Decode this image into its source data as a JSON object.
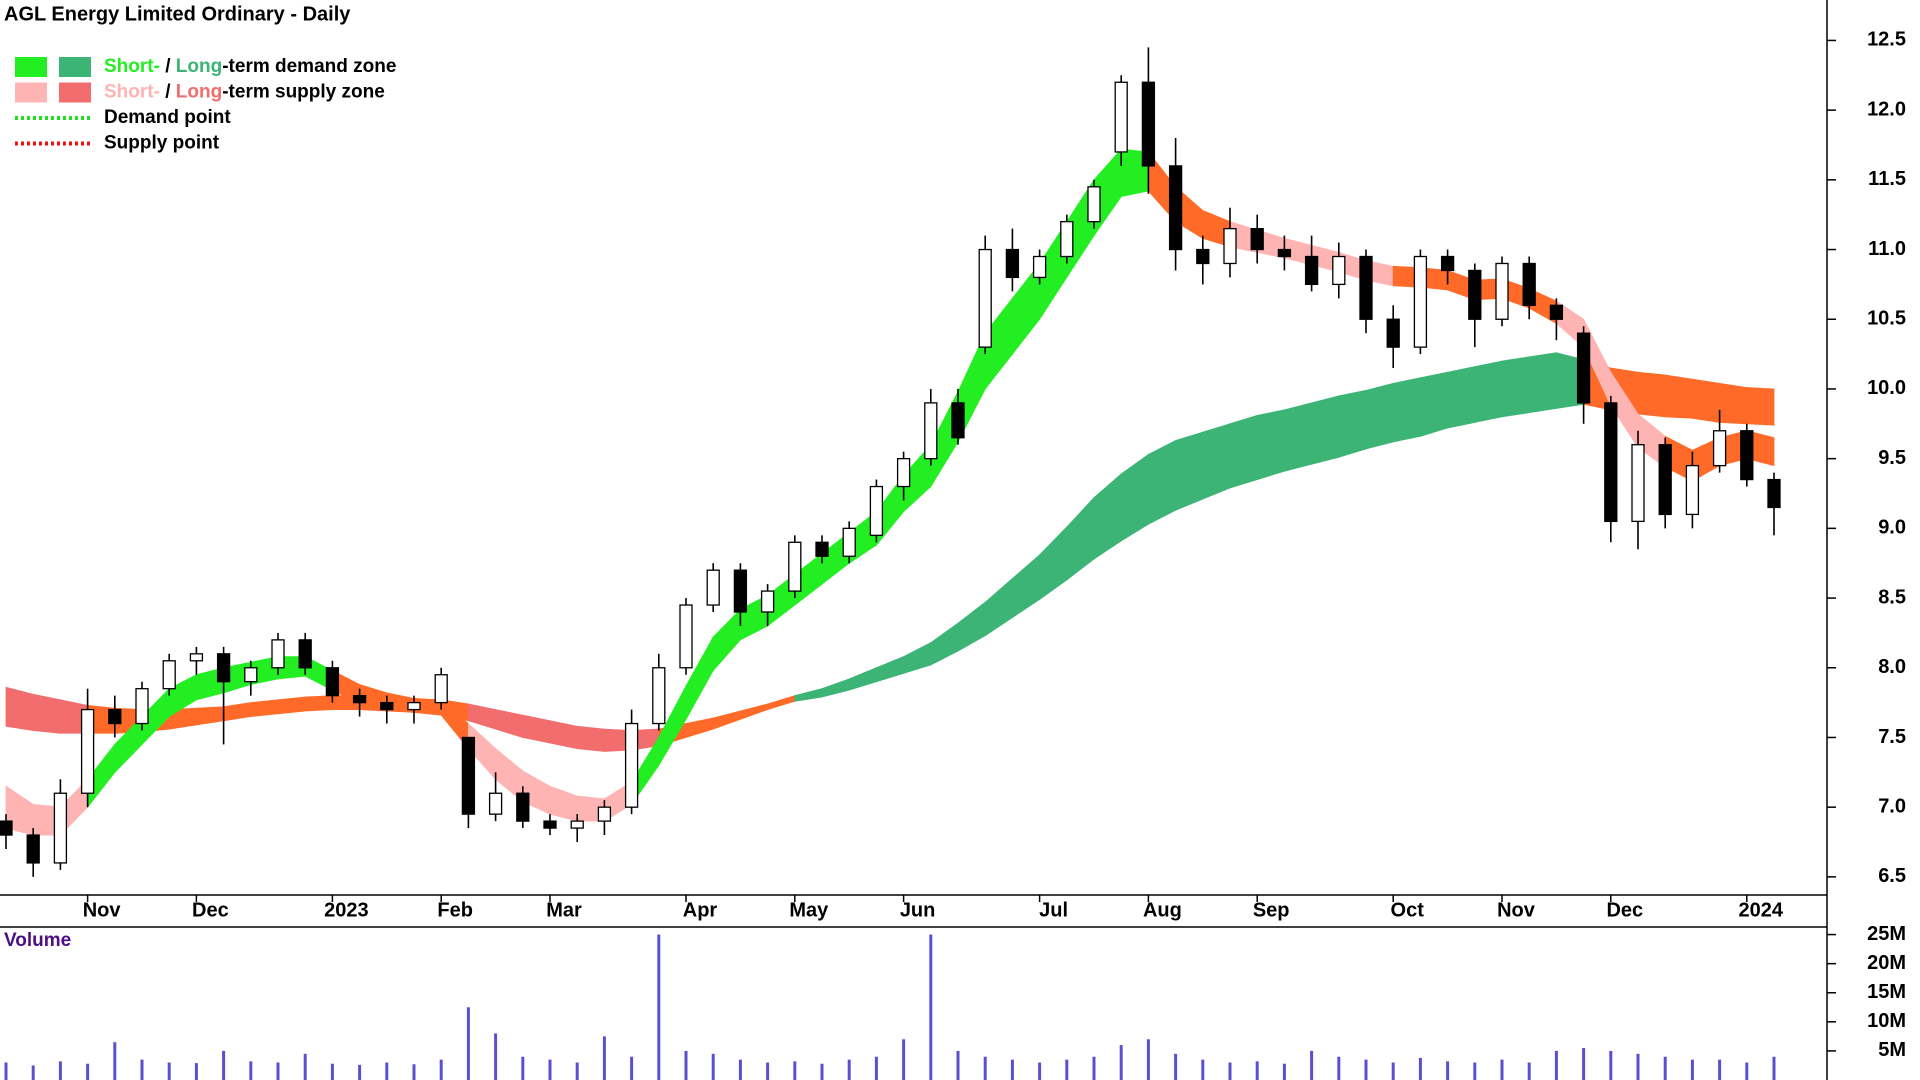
{
  "chart_data": [
    {
      "type": "candlestick",
      "title": "AGL Energy Limited Ordinary - Daily",
      "legend": [
        {
          "swatches": [
            "#22ee22",
            "#3cb475"
          ],
          "parts": [
            {
              "text": "Short-",
              "color": "#22ee22"
            },
            {
              "text": " / ",
              "color": "#000000"
            },
            {
              "text": "Long",
              "color": "#3cb475"
            },
            {
              "text": "-term demand zone",
              "color": "#000000"
            }
          ]
        },
        {
          "swatches": [
            "#ffb4b4",
            "#f26d6d"
          ],
          "parts": [
            {
              "text": "Short-",
              "color": "#ffb4b4"
            },
            {
              "text": " / ",
              "color": "#000000"
            },
            {
              "text": "Long",
              "color": "#f26d6d"
            },
            {
              "text": "-term supply zone",
              "color": "#000000"
            }
          ]
        },
        {
          "dotted": "#22dd22",
          "parts": [
            {
              "text": "Demand point",
              "color": "#000000"
            }
          ]
        },
        {
          "dotted": "#ee1111",
          "parts": [
            {
              "text": "Supply point",
              "color": "#000000"
            }
          ]
        }
      ],
      "categories": [
        null,
        null,
        null,
        "Nov",
        null,
        null,
        null,
        "Dec",
        null,
        null,
        null,
        null,
        "2023",
        null,
        null,
        null,
        "Feb",
        null,
        null,
        null,
        "Mar",
        null,
        null,
        null,
        null,
        "Apr",
        null,
        null,
        null,
        "May",
        null,
        null,
        null,
        "Jun",
        null,
        null,
        null,
        null,
        "Jul",
        null,
        null,
        null,
        "Aug",
        null,
        null,
        null,
        "Sep",
        null,
        null,
        null,
        null,
        "Oct",
        null,
        null,
        null,
        "Nov",
        null,
        null,
        null,
        "Dec",
        null,
        null,
        null,
        null,
        "2024",
        null
      ],
      "candles": [
        [
          6.9,
          6.95,
          6.7,
          6.8
        ],
        [
          6.8,
          6.85,
          6.5,
          6.6
        ],
        [
          6.6,
          7.2,
          6.55,
          7.1
        ],
        [
          7.1,
          7.85,
          7.0,
          7.7
        ],
        [
          7.7,
          7.8,
          7.5,
          7.6
        ],
        [
          7.6,
          7.9,
          7.55,
          7.85
        ],
        [
          7.85,
          8.1,
          7.8,
          8.05
        ],
        [
          8.05,
          8.15,
          7.95,
          8.1
        ],
        [
          8.1,
          8.15,
          7.45,
          7.9
        ],
        [
          7.9,
          8.05,
          7.8,
          8.0
        ],
        [
          8.0,
          8.25,
          7.95,
          8.2
        ],
        [
          8.2,
          8.25,
          7.95,
          8.0
        ],
        [
          8.0,
          8.05,
          7.75,
          7.8
        ],
        [
          7.8,
          7.85,
          7.65,
          7.75
        ],
        [
          7.75,
          7.8,
          7.6,
          7.7
        ],
        [
          7.7,
          7.8,
          7.6,
          7.75
        ],
        [
          7.75,
          8.0,
          7.7,
          7.95
        ],
        [
          7.5,
          7.5,
          6.85,
          6.95
        ],
        [
          6.95,
          7.25,
          6.9,
          7.1
        ],
        [
          7.1,
          7.15,
          6.85,
          6.9
        ],
        [
          6.9,
          6.95,
          6.8,
          6.85
        ],
        [
          6.85,
          6.95,
          6.75,
          6.9
        ],
        [
          6.9,
          7.05,
          6.8,
          7.0
        ],
        [
          7.0,
          7.7,
          6.95,
          7.6
        ],
        [
          7.6,
          8.1,
          7.55,
          8.0
        ],
        [
          8.0,
          8.5,
          7.95,
          8.45
        ],
        [
          8.45,
          8.75,
          8.4,
          8.7
        ],
        [
          8.7,
          8.75,
          8.3,
          8.4
        ],
        [
          8.4,
          8.6,
          8.3,
          8.55
        ],
        [
          8.55,
          8.95,
          8.5,
          8.9
        ],
        [
          8.9,
          8.95,
          8.75,
          8.8
        ],
        [
          8.8,
          9.05,
          8.75,
          9.0
        ],
        [
          8.95,
          9.35,
          8.9,
          9.3
        ],
        [
          9.3,
          9.55,
          9.2,
          9.5
        ],
        [
          9.5,
          10.0,
          9.45,
          9.9
        ],
        [
          9.9,
          10.0,
          9.6,
          9.65
        ],
        [
          10.3,
          11.1,
          10.25,
          11.0
        ],
        [
          11.0,
          11.15,
          10.7,
          10.8
        ],
        [
          10.8,
          11.0,
          10.75,
          10.95
        ],
        [
          10.95,
          11.25,
          10.9,
          11.2
        ],
        [
          11.2,
          11.5,
          11.15,
          11.45
        ],
        [
          11.7,
          12.25,
          11.6,
          12.2
        ],
        [
          12.2,
          12.45,
          11.4,
          11.6
        ],
        [
          11.6,
          11.8,
          10.85,
          11.0
        ],
        [
          11.0,
          11.1,
          10.75,
          10.9
        ],
        [
          10.9,
          11.3,
          10.8,
          11.15
        ],
        [
          11.15,
          11.25,
          10.9,
          11.0
        ],
        [
          11.0,
          11.1,
          10.85,
          10.95
        ],
        [
          10.95,
          11.1,
          10.7,
          10.75
        ],
        [
          10.75,
          11.05,
          10.65,
          10.95
        ],
        [
          10.95,
          11.0,
          10.4,
          10.5
        ],
        [
          10.5,
          10.6,
          10.15,
          10.3
        ],
        [
          10.3,
          11.0,
          10.25,
          10.95
        ],
        [
          10.95,
          11.0,
          10.75,
          10.85
        ],
        [
          10.85,
          10.9,
          10.3,
          10.5
        ],
        [
          10.5,
          10.95,
          10.45,
          10.9
        ],
        [
          10.9,
          10.95,
          10.5,
          10.6
        ],
        [
          10.6,
          10.65,
          10.35,
          10.5
        ],
        [
          10.4,
          10.45,
          9.75,
          9.9
        ],
        [
          9.9,
          9.95,
          8.9,
          9.05
        ],
        [
          9.05,
          9.7,
          8.85,
          9.6
        ],
        [
          9.6,
          9.65,
          9.0,
          9.1
        ],
        [
          9.1,
          9.55,
          9.0,
          9.45
        ],
        [
          9.45,
          9.85,
          9.4,
          9.7
        ],
        [
          9.7,
          9.75,
          9.3,
          9.35
        ],
        [
          9.35,
          9.4,
          8.95,
          9.15
        ]
      ],
      "bands": [
        {
          "upper": [
            7.86,
            7.81,
            7.77,
            7.73,
            7.71,
            7.7,
            7.7,
            7.71,
            7.72,
            7.75,
            7.77,
            7.79,
            7.8,
            7.8,
            7.79,
            7.78,
            7.77,
            7.74,
            7.7,
            7.66,
            7.62,
            7.58,
            7.56,
            7.55,
            7.56,
            7.6,
            7.64,
            7.69,
            7.74,
            7.8,
            7.85,
            7.92,
            8.0,
            8.08,
            8.18,
            8.32,
            8.47,
            8.64,
            8.81,
            9.01,
            9.22,
            9.39,
            9.53,
            9.63,
            9.69,
            9.75,
            9.81,
            9.85,
            9.9,
            9.95,
            9.99,
            10.04,
            10.08,
            10.12,
            10.16,
            10.2,
            10.23,
            10.26,
            10.21,
            10.15,
            10.12,
            10.1,
            10.07,
            10.04,
            10.01,
            10.0
          ],
          "lower": [
            7.58,
            7.55,
            7.53,
            7.53,
            7.53,
            7.54,
            7.56,
            7.59,
            7.62,
            7.65,
            7.67,
            7.69,
            7.7,
            7.7,
            7.69,
            7.68,
            7.67,
            7.62,
            7.56,
            7.5,
            7.46,
            7.42,
            7.4,
            7.41,
            7.44,
            7.5,
            7.56,
            7.63,
            7.7,
            7.76,
            7.79,
            7.84,
            7.9,
            7.96,
            8.02,
            8.12,
            8.23,
            8.36,
            8.49,
            8.63,
            8.78,
            8.91,
            9.03,
            9.13,
            9.21,
            9.29,
            9.35,
            9.41,
            9.46,
            9.51,
            9.57,
            9.62,
            9.66,
            9.72,
            9.76,
            9.8,
            9.83,
            9.86,
            9.89,
            9.85,
            9.82,
            9.8,
            9.79,
            9.76,
            9.75,
            9.74
          ],
          "colors": [
            "#f26d6d",
            "#f26d6d",
            "#f26d6d",
            "#ff6a28",
            "#ff6a28",
            "#ff6a28",
            "#ff6a28",
            "#ff6a28",
            "#ff6a28",
            "#ff6a28",
            "#ff6a28",
            "#ff6a28",
            "#ff6a28",
            "#ff6a28",
            "#ff6a28",
            "#ff6a28",
            "#ff6a28",
            "#f26d6d",
            "#f26d6d",
            "#f26d6d",
            "#f26d6d",
            "#f26d6d",
            "#f26d6d",
            "#f26d6d",
            "#ff6a28",
            "#ff6a28",
            "#ff6a28",
            "#ff6a28",
            "#ff6a28",
            "#3cb475",
            "#3cb475",
            "#3cb475",
            "#3cb475",
            "#3cb475",
            "#3cb475",
            "#3cb475",
            "#3cb475",
            "#3cb475",
            "#3cb475",
            "#3cb475",
            "#3cb475",
            "#3cb475",
            "#3cb475",
            "#3cb475",
            "#3cb475",
            "#3cb475",
            "#3cb475",
            "#3cb475",
            "#3cb475",
            "#3cb475",
            "#3cb475",
            "#3cb475",
            "#3cb475",
            "#3cb475",
            "#3cb475",
            "#3cb475",
            "#3cb475",
            "#3cb475",
            "#ff6a28",
            "#ff6a28",
            "#ff6a28",
            "#ff6a28",
            "#ff6a28",
            "#ff6a28",
            "#ff6a28",
            "#ff6a28"
          ]
        },
        {
          "upper": [
            7.15,
            7.02,
            7.0,
            7.2,
            7.45,
            7.65,
            7.85,
            7.95,
            8.0,
            8.04,
            8.08,
            8.08,
            7.98,
            7.88,
            7.82,
            7.78,
            7.76,
            7.6,
            7.42,
            7.26,
            7.15,
            7.08,
            7.06,
            7.18,
            7.5,
            7.87,
            8.22,
            8.42,
            8.52,
            8.67,
            8.82,
            8.97,
            9.12,
            9.38,
            9.6,
            9.98,
            10.4,
            10.65,
            10.9,
            11.2,
            11.5,
            11.72,
            11.7,
            11.45,
            11.28,
            11.2,
            11.14,
            11.08,
            11.03,
            10.98,
            10.92,
            10.88,
            10.87,
            10.85,
            10.78,
            10.79,
            10.72,
            10.63,
            10.5,
            10.12,
            9.82,
            9.66,
            9.56,
            9.65,
            9.7,
            9.65
          ],
          "lower": [
            6.85,
            6.8,
            6.8,
            7.0,
            7.25,
            7.45,
            7.65,
            7.77,
            7.82,
            7.88,
            7.92,
            7.94,
            7.84,
            7.74,
            7.7,
            7.68,
            7.66,
            7.42,
            7.2,
            7.04,
            6.95,
            6.9,
            6.9,
            7.02,
            7.3,
            7.63,
            7.98,
            8.2,
            8.3,
            8.45,
            8.6,
            8.75,
            8.88,
            9.12,
            9.3,
            9.62,
            10.0,
            10.25,
            10.5,
            10.8,
            11.1,
            11.38,
            11.42,
            11.2,
            11.08,
            11.02,
            10.98,
            10.94,
            10.89,
            10.84,
            10.78,
            10.74,
            10.73,
            10.71,
            10.64,
            10.65,
            10.58,
            10.47,
            10.3,
            9.88,
            9.58,
            9.44,
            9.34,
            9.45,
            9.5,
            9.45
          ],
          "colors": [
            "#ffb4b4",
            "#ffb4b4",
            "#ffb4b4",
            "#22ee22",
            "#22ee22",
            "#22ee22",
            "#22ee22",
            "#22ee22",
            "#22ee22",
            "#22ee22",
            "#22ee22",
            "#22ee22",
            "#ff6a28",
            "#ff6a28",
            "#ff6a28",
            "#ff6a28",
            "#ff6a28",
            "#ffb4b4",
            "#ffb4b4",
            "#ffb4b4",
            "#ffb4b4",
            "#ffb4b4",
            "#ffb4b4",
            "#22ee22",
            "#22ee22",
            "#22ee22",
            "#22ee22",
            "#22ee22",
            "#22ee22",
            "#22ee22",
            "#22ee22",
            "#22ee22",
            "#22ee22",
            "#22ee22",
            "#22ee22",
            "#22ee22",
            "#22ee22",
            "#22ee22",
            "#22ee22",
            "#22ee22",
            "#22ee22",
            "#22ee22",
            "#ff6a28",
            "#ff6a28",
            "#ff6a28",
            "#ffb4b4",
            "#ffb4b4",
            "#ffb4b4",
            "#ffb4b4",
            "#ffb4b4",
            "#ffb4b4",
            "#ff6a28",
            "#ff6a28",
            "#ff6a28",
            "#ff6a28",
            "#ff6a28",
            "#ff6a28",
            "#ffb4b4",
            "#ffb4b4",
            "#ffb4b4",
            "#ffb4b4",
            "#ff6a28",
            "#ff6a28",
            "#ff6a28",
            "#ff6a28",
            "#ff6a28"
          ]
        }
      ],
      "up_color": "#ffffff",
      "down_color": "#000000",
      "ylim": [
        6.37,
        12.79
      ],
      "yticks": [
        6.5,
        {
          "value": 7,
          "label": "7.0"
        },
        7.5,
        {
          "value": 8,
          "label": "8.0"
        },
        8.5,
        {
          "value": 9,
          "label": "9.0"
        },
        9.5,
        {
          "value": 10,
          "label": "10.0"
        },
        10.5,
        {
          "value": 11,
          "label": "11.0"
        },
        11.5,
        {
          "value": 12,
          "label": "12.0"
        },
        12.5
      ]
    },
    {
      "type": "bar",
      "title": "Volume",
      "color": "#5a4fd0",
      "values": [
        3000000,
        2500000,
        3200000,
        2800000,
        6500000,
        3500000,
        3000000,
        2900000,
        5000000,
        3200000,
        3000000,
        4500000,
        2800000,
        2600000,
        3000000,
        2700000,
        3500000,
        12500000,
        8000000,
        4000000,
        3500000,
        3000000,
        7500000,
        4000000,
        25000000,
        5000000,
        4500000,
        3500000,
        3000000,
        3200000,
        2800000,
        3500000,
        4000000,
        7000000,
        25000000,
        5000000,
        4000000,
        3500000,
        3000000,
        3500000,
        4000000,
        6000000,
        7000000,
        4500000,
        3500000,
        3000000,
        3200000,
        2800000,
        5000000,
        4000000,
        3500000,
        3000000,
        3800000,
        3200000,
        3000000,
        3500000,
        3000000,
        5000000,
        5500000,
        5000000,
        4500000,
        4000000,
        3500000,
        3500000,
        3000000,
        4000000
      ],
      "ylim": [
        0,
        26300000
      ],
      "yticks": [
        {
          "value": 5000000,
          "label": "5M"
        },
        {
          "value": 10000000,
          "label": "10M"
        },
        {
          "value": 15000000,
          "label": "15M"
        },
        {
          "value": 20000000,
          "label": "20M"
        },
        {
          "value": 25000000,
          "label": "25M"
        }
      ]
    }
  ]
}
